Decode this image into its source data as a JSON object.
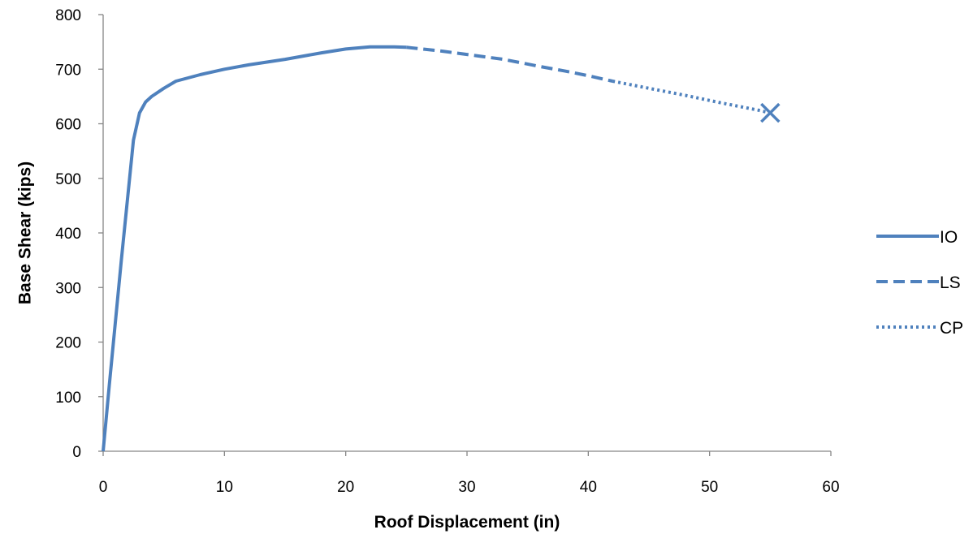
{
  "chart_data": {
    "type": "line",
    "title": "",
    "xlabel": "Roof Displacement (in)",
    "ylabel": "Base Shear (kips)",
    "xlim": [
      0,
      60
    ],
    "ylim": [
      0,
      800
    ],
    "xticks": [
      0,
      10,
      20,
      30,
      40,
      50,
      60
    ],
    "yticks": [
      0,
      100,
      200,
      300,
      400,
      500,
      600,
      700,
      800
    ],
    "grid": false,
    "legend_position": "right",
    "series": [
      {
        "name": "IO",
        "style": "solid",
        "color": "#4f81bd",
        "x": [
          0,
          0.5,
          1.5,
          2.5,
          3,
          3.5,
          4,
          5,
          6,
          8,
          10,
          12,
          15,
          18,
          20,
          22,
          24,
          25
        ],
        "y": [
          0,
          120,
          350,
          570,
          620,
          640,
          650,
          665,
          678,
          690,
          700,
          708,
          718,
          730,
          737,
          741,
          741,
          740
        ]
      },
      {
        "name": "LS",
        "style": "dashed",
        "color": "#4f81bd",
        "x": [
          25,
          28,
          30,
          33,
          36,
          38,
          40,
          42
        ],
        "y": [
          740,
          733,
          727,
          718,
          705,
          697,
          688,
          678
        ]
      },
      {
        "name": "CP",
        "style": "dotted",
        "color": "#4f81bd",
        "x": [
          42,
          45,
          48,
          51,
          54,
          55
        ],
        "y": [
          678,
          665,
          652,
          638,
          625,
          620
        ]
      }
    ],
    "markers": [
      {
        "type": "x",
        "x": 55,
        "y": 620,
        "color": "#4f81bd"
      }
    ]
  }
}
